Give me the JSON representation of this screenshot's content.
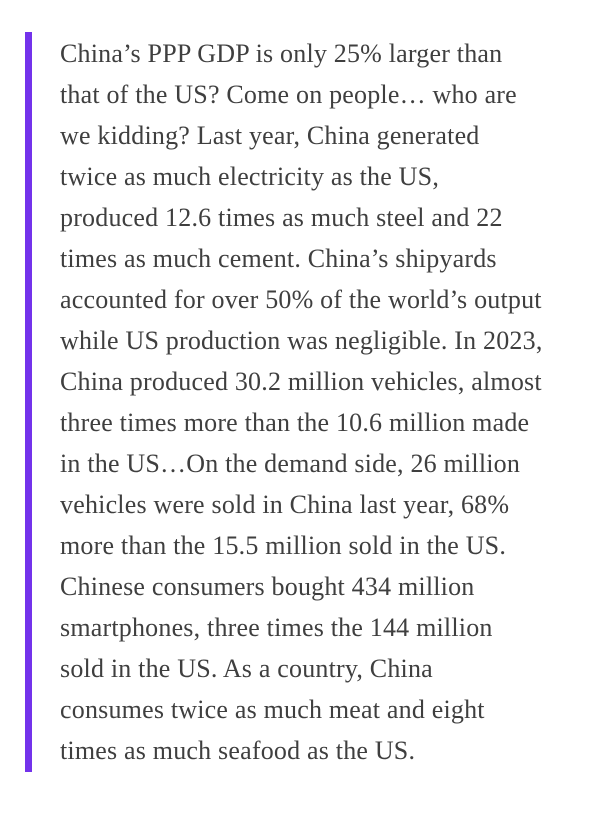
{
  "page": {
    "background_color": "#FFFFFF"
  },
  "quote": {
    "accent_color": "#7332EB",
    "text_color": "#3F3F3F",
    "lines": [
      "China’s PPP GDP is only 25% larger than",
      "that of the US? Come on people… who are",
      "we kidding? Last year, China generated",
      "twice as much electricity as the US,",
      "produced 12.6 times as much steel and 22",
      "times as much cement. China’s shipyards",
      "accounted for over 50% of the world’s output",
      "while US production was negligible. In 2023,",
      "China produced 30.2 million vehicles, almost",
      "three times more than the 10.6 million made",
      "in the US…On the demand side, 26 million",
      "vehicles were sold in China last year, 68%",
      "more than the 15.5 million sold in the US.",
      "Chinese consumers bought 434 million",
      "smartphones, three times the 144 million",
      "sold in the US. As a country, China",
      "consumes twice as much meat and eight",
      "times as much seafood as the US."
    ]
  }
}
